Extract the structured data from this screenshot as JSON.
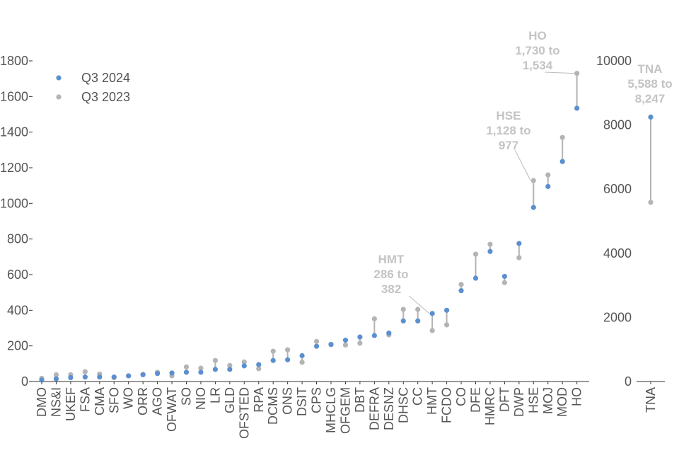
{
  "chart_data": [
    {
      "type": "scatter",
      "style": "dumbbell",
      "categories": [
        "DMO",
        "NS&I",
        "UKEF",
        "FSA",
        "CMA",
        "SFO",
        "WO",
        "ORR",
        "AGO",
        "OFWAT",
        "SO",
        "NIO",
        "LR",
        "GLD",
        "OFSTED",
        "RPA",
        "DCMS",
        "ONS",
        "DSIT",
        "CPS",
        "MHCLG",
        "OFGEM",
        "DBT",
        "DEFRA",
        "DESNZ",
        "DHSC",
        "CC",
        "HMT",
        "FCDO",
        "CO",
        "DFE",
        "HMRC",
        "DFT",
        "DWP",
        "HSE",
        "MOJ",
        "MOD",
        "HO"
      ],
      "series": [
        {
          "name": "Q3 2024",
          "color": "#5b8fd0",
          "values": [
            8,
            15,
            22,
            25,
            25,
            25,
            32,
            38,
            45,
            48,
            52,
            52,
            68,
            68,
            88,
            95,
            118,
            122,
            145,
            198,
            208,
            232,
            250,
            258,
            272,
            340,
            340,
            382,
            400,
            510,
            580,
            730,
            590,
            775,
            977,
            1095,
            1235,
            1534
          ]
        },
        {
          "name": "Q3 2023",
          "color": "#b4b4b4",
          "values": [
            18,
            38,
            38,
            55,
            42,
            22,
            32,
            40,
            52,
            32,
            82,
            75,
            118,
            90,
            110,
            72,
            170,
            178,
            108,
            225,
            208,
            205,
            215,
            352,
            262,
            405,
            405,
            286,
            318,
            545,
            715,
            770,
            555,
            695,
            1128,
            1160,
            1370,
            1730
          ]
        }
      ],
      "ylim": [
        0,
        1800
      ],
      "yticks": [
        0,
        200,
        400,
        600,
        800,
        1000,
        1200,
        1400,
        1600,
        1800
      ],
      "legend": {
        "position": "top-left",
        "entries": [
          "Q3 2024",
          "Q3 2023"
        ]
      },
      "annotations": [
        {
          "category": "HMT",
          "lines": [
            "HMT",
            "286 to",
            "382"
          ]
        },
        {
          "category": "HSE",
          "lines": [
            "HSE",
            "1,128 to",
            "977"
          ]
        },
        {
          "category": "HO",
          "lines": [
            "HO",
            "1,730 to",
            "1,534"
          ]
        }
      ],
      "grid": false
    },
    {
      "type": "scatter",
      "style": "dumbbell",
      "categories": [
        "TNA"
      ],
      "series": [
        {
          "name": "Q3 2024",
          "color": "#5b8fd0",
          "values": [
            8247
          ]
        },
        {
          "name": "Q3 2023",
          "color": "#b4b4b4",
          "values": [
            5588
          ]
        }
      ],
      "ylim": [
        0,
        10000
      ],
      "yticks": [
        0,
        2000,
        4000,
        6000,
        8000,
        10000
      ],
      "annotations": [
        {
          "category": "TNA",
          "lines": [
            "TNA",
            "5,588 to",
            "8,247"
          ]
        }
      ],
      "grid": false
    }
  ]
}
